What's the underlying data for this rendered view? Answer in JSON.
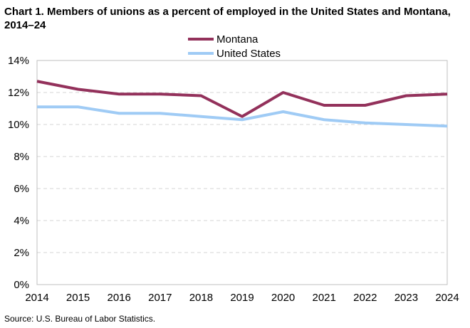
{
  "chart_data": {
    "type": "line",
    "title": "Chart 1. Members of unions as a percent of employed  in the United States and Montana, 2014–24",
    "x": [
      2014,
      2015,
      2016,
      2017,
      2018,
      2019,
      2020,
      2021,
      2022,
      2023,
      2024
    ],
    "x_tick_labels": [
      "2014",
      "2015",
      "2016",
      "2017",
      "2018",
      "2019",
      "2020",
      "2021",
      "2022",
      "2023",
      "2024"
    ],
    "series": [
      {
        "name": "Montana",
        "color": "#93315b",
        "values": [
          12.7,
          12.2,
          11.9,
          11.9,
          11.8,
          10.5,
          12.0,
          11.2,
          11.2,
          11.8,
          11.9
        ]
      },
      {
        "name": "United States",
        "color": "#9fcbf5",
        "values": [
          11.1,
          11.1,
          10.7,
          10.7,
          10.5,
          10.3,
          10.8,
          10.3,
          10.1,
          10.0,
          9.9
        ]
      }
    ],
    "ylim": [
      0,
      14
    ],
    "y_ticks": [
      0,
      2,
      4,
      6,
      8,
      10,
      12,
      14
    ],
    "y_tick_labels": [
      "0%",
      "2%",
      "4%",
      "6%",
      "8%",
      "10%",
      "12%",
      "14%"
    ],
    "xlabel": "",
    "ylabel": "",
    "grid": true,
    "legend_position": "top-center"
  },
  "source": "Source:  U.S. Bureau  of Labor Statistics."
}
